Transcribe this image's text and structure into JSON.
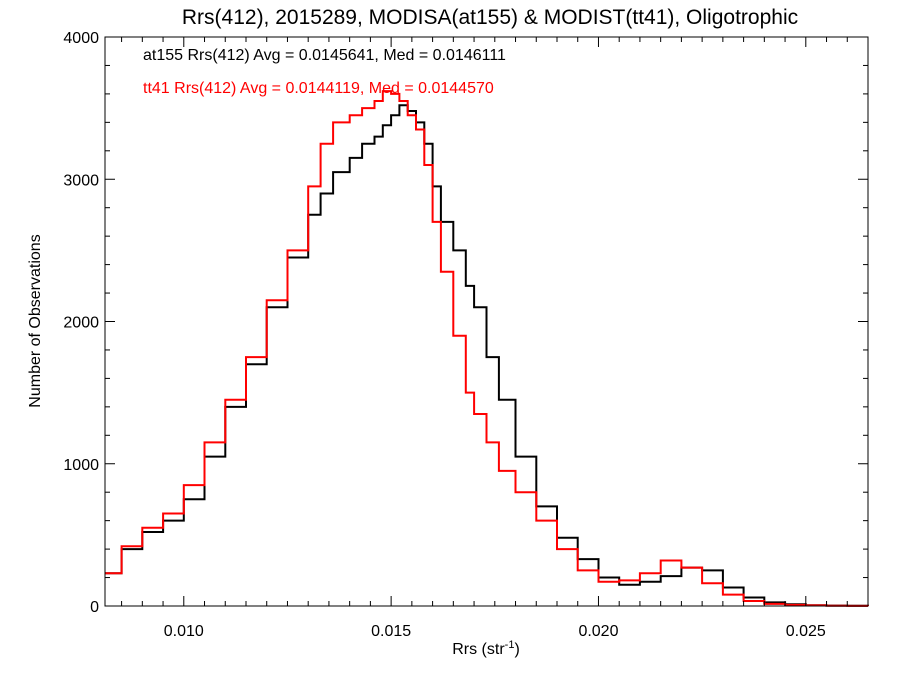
{
  "chart_data": {
    "type": "line",
    "title": "Rrs(412), 2015289, MODISA(at155) & MODIST(tt41), Oligotrophic",
    "xlabel_main": "Rrs (str",
    "xlabel_sup": "-1",
    "xlabel_end": ")",
    "ylabel": "Number of Observations",
    "xlim": [
      0.0081,
      0.0265
    ],
    "ylim": [
      0,
      4000
    ],
    "xticks": [
      0.01,
      0.015,
      0.02,
      0.025
    ],
    "xtick_labels": [
      "0.010",
      "0.015",
      "0.020",
      "0.025"
    ],
    "yticks": [
      0,
      1000,
      2000,
      3000,
      4000
    ],
    "ytick_labels": [
      "0",
      "1000",
      "2000",
      "3000",
      "4000"
    ],
    "legend": [
      {
        "text": "at155 Rrs(412) Avg = 0.0145641, Med = 0.0146111",
        "color": "#000000"
      },
      {
        "text": "tt41 Rrs(412) Avg = 0.0144119, Med = 0.0144570",
        "color": "#ff0000"
      }
    ],
    "series": [
      {
        "color": "#000000",
        "x": [
          0.0081,
          0.0085,
          0.009,
          0.0095,
          0.01,
          0.0105,
          0.011,
          0.0115,
          0.012,
          0.0125,
          0.013,
          0.0133,
          0.0136,
          0.014,
          0.0143,
          0.0146,
          0.0148,
          0.015,
          0.0152,
          0.0154,
          0.0156,
          0.0158,
          0.016,
          0.0162,
          0.0165,
          0.0168,
          0.017,
          0.0173,
          0.0176,
          0.018,
          0.0185,
          0.019,
          0.0195,
          0.02,
          0.0205,
          0.021,
          0.0215,
          0.022,
          0.0225,
          0.023,
          0.0235,
          0.024,
          0.0245,
          0.025,
          0.0255,
          0.026,
          0.0265
        ],
        "y": [
          230,
          400,
          520,
          600,
          750,
          1050,
          1400,
          1700,
          2100,
          2450,
          2750,
          2900,
          3050,
          3150,
          3250,
          3300,
          3380,
          3450,
          3520,
          3480,
          3400,
          3250,
          2950,
          2700,
          2500,
          2250,
          2100,
          1750,
          1450,
          1050,
          700,
          480,
          330,
          200,
          150,
          170,
          210,
          270,
          250,
          130,
          60,
          25,
          12,
          5,
          3,
          2,
          0
        ]
      },
      {
        "color": "#ff0000",
        "x": [
          0.0081,
          0.0085,
          0.009,
          0.0095,
          0.01,
          0.0105,
          0.011,
          0.0115,
          0.012,
          0.0125,
          0.013,
          0.0133,
          0.0136,
          0.014,
          0.0143,
          0.0146,
          0.0148,
          0.015,
          0.0152,
          0.0154,
          0.0156,
          0.0158,
          0.016,
          0.0162,
          0.0165,
          0.0168,
          0.017,
          0.0173,
          0.0176,
          0.018,
          0.0185,
          0.019,
          0.0195,
          0.02,
          0.0205,
          0.021,
          0.0215,
          0.022,
          0.0225,
          0.023,
          0.0235,
          0.024,
          0.0245,
          0.025,
          0.0255,
          0.026,
          0.0265
        ],
        "y": [
          230,
          420,
          550,
          650,
          850,
          1150,
          1450,
          1750,
          2150,
          2500,
          2950,
          3250,
          3400,
          3450,
          3500,
          3550,
          3620,
          3600,
          3550,
          3450,
          3350,
          3100,
          2700,
          2350,
          1900,
          1500,
          1350,
          1150,
          950,
          800,
          600,
          400,
          250,
          170,
          180,
          230,
          320,
          270,
          160,
          80,
          35,
          15,
          8,
          4,
          2,
          1,
          0
        ]
      }
    ]
  }
}
